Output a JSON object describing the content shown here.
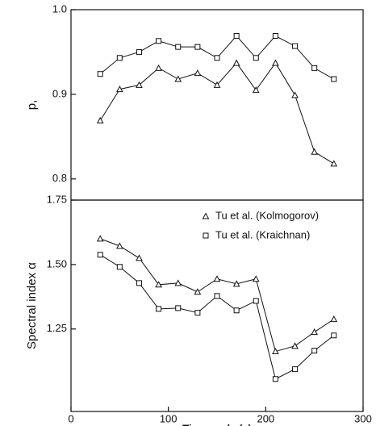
{
  "chart_data": [
    {
      "type": "line",
      "ylabel": "p,",
      "x": [
        30,
        50,
        70,
        90,
        110,
        130,
        150,
        170,
        190,
        210,
        230,
        250,
        270
      ],
      "xlim": [
        0,
        300
      ],
      "ylim": [
        0.775,
        1.0
      ],
      "yticks": [
        {
          "value": 0.8,
          "label": "0.8"
        },
        {
          "value": 0.9,
          "label": "0.9"
        },
        {
          "value": 1.0,
          "label": "1.0"
        }
      ],
      "series": [
        {
          "name": "Tu et al. (Kolmogorov)",
          "marker": "triangle",
          "color": "#111111",
          "values": [
            0.869,
            0.906,
            0.911,
            0.931,
            0.918,
            0.925,
            0.911,
            0.937,
            0.905,
            0.937,
            0.899,
            0.832,
            0.818
          ]
        },
        {
          "name": "Tu et al. (Kraichnan)",
          "marker": "square",
          "color": "#111111",
          "values": [
            0.924,
            0.943,
            0.95,
            0.963,
            0.956,
            0.956,
            0.943,
            0.969,
            0.943,
            0.969,
            0.957,
            0.931,
            0.918
          ]
        }
      ]
    },
    {
      "type": "line",
      "ylabel": "Spectral index α",
      "xlabel": "Time scale (s)",
      "x": [
        30,
        50,
        70,
        90,
        110,
        130,
        150,
        170,
        190,
        210,
        230,
        250,
        270
      ],
      "xlim": [
        0,
        300
      ],
      "xticks": [
        0,
        100,
        200,
        300
      ],
      "ylim": [
        0.93,
        1.75
      ],
      "yticks": [
        {
          "value": 1.25,
          "label": "1.25"
        },
        {
          "value": 1.5,
          "label": "1.50"
        },
        {
          "value": 1.75,
          "label": "1.75"
        }
      ],
      "legend": "upper right",
      "series": [
        {
          "name": "Tu et al. (Kolmogorov)",
          "marker": "triangle",
          "color": "#111111",
          "values": [
            1.6,
            1.572,
            1.525,
            1.422,
            1.428,
            1.394,
            1.444,
            1.425,
            1.444,
            1.163,
            1.184,
            1.238,
            1.288
          ]
        },
        {
          "name": "Tu et al. (Kraichnan)",
          "marker": "square",
          "color": "#111111",
          "values": [
            1.538,
            1.491,
            1.428,
            1.328,
            1.331,
            1.313,
            1.378,
            1.322,
            1.359,
            1.056,
            1.094,
            1.166,
            1.225
          ]
        }
      ]
    }
  ]
}
